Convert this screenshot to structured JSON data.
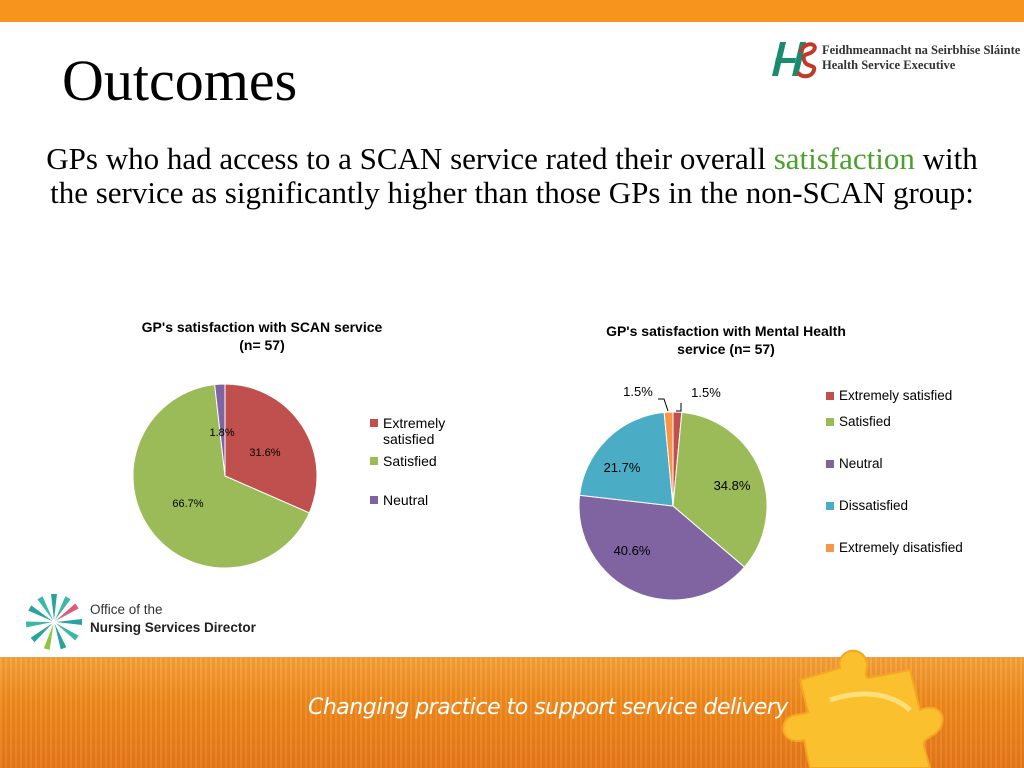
{
  "slide": {
    "title": "Outcomes",
    "subtitle_before": "GPs who had access to a SCAN service rated their overall",
    "subtitle_highlight": "satisfaction",
    "subtitle_after": "with the service as significantly higher than those GPs in the non-SCAN group:",
    "highlight_color": "#4aa02c",
    "accent_color": "#f7941d"
  },
  "logos": {
    "hse_line1": "Feidhmeannacht na Seirbhíse Sláinte",
    "hse_line2": "Health Service Executive",
    "ons_line1": "Office of the",
    "ons_line2": "Nursing Services Director"
  },
  "footer": {
    "tagline": "Changing practice to support service delivery"
  },
  "chart_data": [
    {
      "type": "pie",
      "title": "GP's satisfaction  with SCAN service (n= 57)",
      "title_line1": "GP's satisfaction  with SCAN service",
      "title_line2": "(n= 57)",
      "legend_position": "right",
      "categories": [
        "Extremely satisfied",
        "Satisfied",
        "Neutral"
      ],
      "values": [
        31.6,
        66.7,
        1.8
      ],
      "labels": [
        "31.6%",
        "66.7%",
        "1.8%"
      ],
      "colors": [
        "#c0504d",
        "#9bbb59",
        "#8064a2"
      ]
    },
    {
      "type": "pie",
      "title": "GP's satisfaction  with Mental Health service (n= 57)",
      "title_line1": "GP's satisfaction  with Mental Health",
      "title_line2": "service (n= 57)",
      "legend_position": "right",
      "categories": [
        "Extremely satisfied",
        "Satisfied",
        "Neutral",
        "Dissatisfied",
        "Extremely disatisfied"
      ],
      "values": [
        1.5,
        34.8,
        40.6,
        21.7,
        1.5
      ],
      "labels": [
        "1.5%",
        "34.8%",
        "40.6%",
        "21.7%",
        "1.5%"
      ],
      "colors": [
        "#c0504d",
        "#9bbb59",
        "#8064a2",
        "#4bacc6",
        "#f79646"
      ]
    }
  ]
}
